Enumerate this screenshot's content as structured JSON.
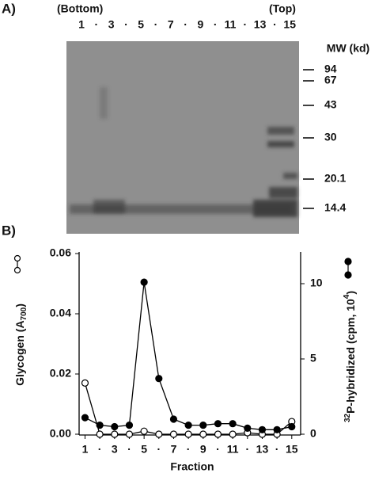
{
  "panel_a": {
    "label": "A)",
    "bottom": "(Bottom)",
    "top": "(Top)",
    "lanes": [
      "1",
      "·",
      "3",
      "·",
      "5",
      "·",
      "7",
      "·",
      "9",
      "·",
      "11",
      "·",
      "13",
      "·",
      "15"
    ],
    "mw_title": "MW (kd)",
    "markers": [
      "94",
      "67",
      "43",
      "30",
      "20.1",
      "14.4"
    ]
  },
  "chart_data": {
    "type": "line",
    "panel_label": "B)",
    "xlabel": "Fraction",
    "ylabel": [
      "Glycogen (A",
      "700",
      ")"
    ],
    "y2label": [
      "32",
      "P-hybridized (cpm, 10",
      "4",
      ")"
    ],
    "x": [
      1,
      2,
      3,
      4,
      5,
      6,
      7,
      8,
      9,
      10,
      11,
      12,
      13,
      14,
      15
    ],
    "xlim": [
      0.6,
      15.6
    ],
    "xticks": [
      1,
      {
        "value": 2,
        "label": "·"
      },
      3,
      {
        "value": 4,
        "label": "·"
      },
      5,
      {
        "value": 6,
        "label": "·"
      },
      7,
      {
        "value": 8,
        "label": "·"
      },
      9,
      {
        "value": 10,
        "label": "·"
      },
      11,
      {
        "value": 12,
        "label": "·"
      },
      13,
      {
        "value": 14,
        "label": "·"
      },
      15
    ],
    "ylim": [
      0,
      0.06
    ],
    "yticks": [
      {
        "value": 0,
        "label": "0.00"
      },
      {
        "value": 0.02,
        "label": "0.02"
      },
      {
        "value": 0.04,
        "label": "0.04"
      },
      {
        "value": 0.06,
        "label": "0.06"
      }
    ],
    "y2lim": [
      0,
      12
    ],
    "y2ticks": [
      0,
      5,
      10
    ],
    "series": [
      {
        "color": "#000000",
        "marker": "open",
        "values": [
          0.017,
          0,
          0,
          0,
          0.001,
          0,
          0,
          0,
          0,
          0,
          0,
          0.0005,
          0,
          0,
          0.0042
        ]
      },
      {
        "color": "#000000",
        "marker": "filled",
        "axis": "y2",
        "values": [
          1.1,
          0.6,
          0.5,
          0.6,
          10.1,
          3.7,
          1.0,
          0.6,
          0.6,
          0.7,
          0.7,
          0.4,
          0.3,
          0.3,
          0.5
        ]
      }
    ]
  }
}
